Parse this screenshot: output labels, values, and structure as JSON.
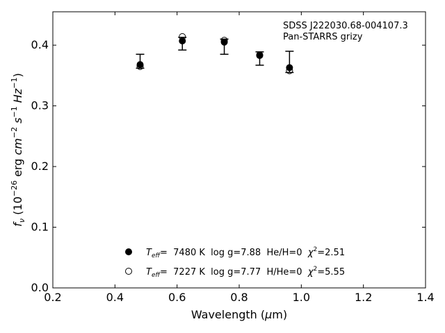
{
  "chart_data": {
    "type": "scatter",
    "title": "",
    "xlabel_main": "Wavelength (",
    "xlabel_mu": "μ",
    "xlabel_unit": "m)",
    "ylabel_f": "f",
    "ylabel_sub": "ν",
    "ylabel_open": " (10",
    "ylabel_exp1": "−26",
    "ylabel_erg": " erg ",
    "ylabel_cm": "cm",
    "ylabel_exp2": "−2",
    "ylabel_s": " s",
    "ylabel_exp3": "−1",
    "ylabel_hz": " Hz",
    "ylabel_exp4": "−1",
    "ylabel_close": ")",
    "xlim": [
      0.2,
      1.4
    ],
    "ylim": [
      0.0,
      0.455
    ],
    "xticks": [
      "0.2",
      "0.4",
      "0.6",
      "0.8",
      "1.0",
      "1.2",
      "1.4"
    ],
    "yticks": [
      "0.0",
      "0.1",
      "0.2",
      "0.3",
      "0.4"
    ],
    "annotation_line1": "SDSS J222030.68-004107.3",
    "annotation_line2": "Pan-STARRS grizy",
    "observed": {
      "x": [
        0.481,
        0.617,
        0.752,
        0.866,
        0.962
      ],
      "y": [
        0.371,
        0.402,
        0.404,
        0.378,
        0.372
      ],
      "yerr_low": [
        0.362,
        0.392,
        0.385,
        0.367,
        0.355
      ],
      "yerr_high": [
        0.385,
        0.413,
        0.41,
        0.389,
        0.39
      ]
    },
    "series": [
      {
        "marker": "filled-circle",
        "x": [
          0.481,
          0.617,
          0.752,
          0.866,
          0.962
        ],
        "y": [
          0.368,
          0.407,
          0.405,
          0.383,
          0.363
        ]
      },
      {
        "marker": "open-circle",
        "x": [
          0.481,
          0.617,
          0.752,
          0.866,
          0.962
        ],
        "y": [
          0.365,
          0.414,
          0.408,
          0.384,
          0.358
        ]
      }
    ],
    "legend": [
      {
        "marker": "filled-circle",
        "teff_T": "T",
        "teff_sub": "eff",
        "text": "=  7480 K  log g=7.88  He/H=0  ",
        "chi": "χ",
        "chi_exp": "2",
        "chi_val": "=2.51"
      },
      {
        "marker": "open-circle",
        "teff_T": "T",
        "teff_sub": "eff",
        "text": "=  7227 K  log g=7.77  H/He=0  ",
        "chi": "χ",
        "chi_exp": "2",
        "chi_val": "=5.55"
      }
    ],
    "legend_placement": "lower-center",
    "grid": false
  }
}
